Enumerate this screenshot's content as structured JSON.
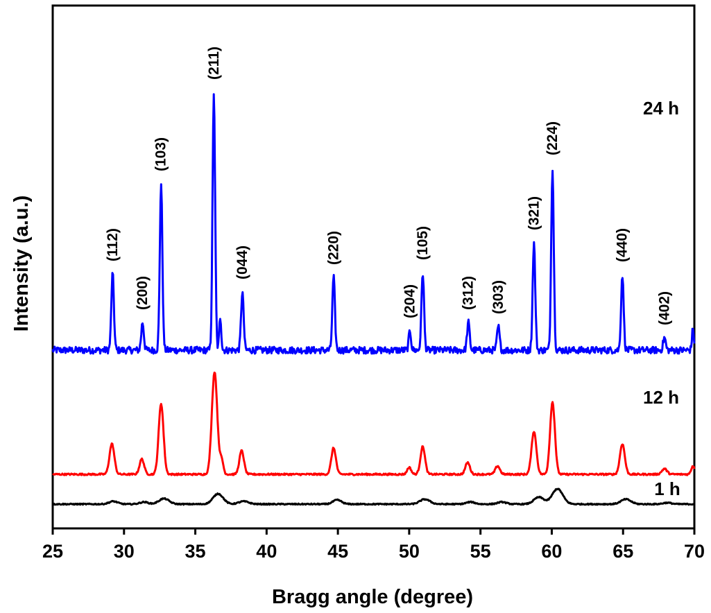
{
  "chart_data": {
    "type": "line",
    "title": "",
    "xlabel": "Bragg angle (degree)",
    "ylabel": "Intensity (a.u.)",
    "xlim": [
      25,
      70
    ],
    "xticks": [
      "25",
      "30",
      "35",
      "40",
      "45",
      "50",
      "55",
      "60",
      "65",
      "70"
    ],
    "yticks_shown": false,
    "grid": false,
    "legend": "none",
    "series": [
      {
        "name": "24 h",
        "color": "#0000ff",
        "noise": 5,
        "baseline": 0,
        "peaks": [
          {
            "x": 29.2,
            "height": 110,
            "width": 0.09
          },
          {
            "x": 31.3,
            "height": 40,
            "width": 0.09
          },
          {
            "x": 32.6,
            "height": 240,
            "width": 0.09
          },
          {
            "x": 36.3,
            "height": 372,
            "width": 0.09
          },
          {
            "x": 36.75,
            "height": 48,
            "width": 0.07
          },
          {
            "x": 38.3,
            "height": 84,
            "width": 0.09
          },
          {
            "x": 44.7,
            "height": 105,
            "width": 0.09
          },
          {
            "x": 50.05,
            "height": 28,
            "width": 0.08
          },
          {
            "x": 50.95,
            "height": 112,
            "width": 0.09
          },
          {
            "x": 54.15,
            "height": 40,
            "width": 0.09
          },
          {
            "x": 56.25,
            "height": 34,
            "width": 0.09
          },
          {
            "x": 58.75,
            "height": 155,
            "width": 0.09
          },
          {
            "x": 60.05,
            "height": 263,
            "width": 0.09
          },
          {
            "x": 64.95,
            "height": 109,
            "width": 0.09
          },
          {
            "x": 67.9,
            "height": 18,
            "width": 0.09
          },
          {
            "x": 69.9,
            "height": 30,
            "width": 0.07
          }
        ]
      },
      {
        "name": "12 h",
        "color": "#ff0000",
        "noise": 1.2,
        "baseline": 0,
        "peaks": [
          {
            "x": 29.15,
            "height": 44,
            "width": 0.17
          },
          {
            "x": 31.25,
            "height": 22,
            "width": 0.16
          },
          {
            "x": 32.6,
            "height": 102,
            "width": 0.17
          },
          {
            "x": 36.35,
            "height": 148,
            "width": 0.19
          },
          {
            "x": 36.85,
            "height": 20,
            "width": 0.12
          },
          {
            "x": 38.25,
            "height": 34,
            "width": 0.16
          },
          {
            "x": 44.7,
            "height": 38,
            "width": 0.16
          },
          {
            "x": 50.0,
            "height": 10,
            "width": 0.14
          },
          {
            "x": 50.95,
            "height": 40,
            "width": 0.16
          },
          {
            "x": 54.1,
            "height": 17,
            "width": 0.16
          },
          {
            "x": 56.2,
            "height": 12,
            "width": 0.16
          },
          {
            "x": 58.75,
            "height": 62,
            "width": 0.17
          },
          {
            "x": 60.05,
            "height": 104,
            "width": 0.17
          },
          {
            "x": 64.95,
            "height": 44,
            "width": 0.17
          },
          {
            "x": 67.9,
            "height": 8,
            "width": 0.18
          },
          {
            "x": 69.9,
            "height": 12,
            "width": 0.12
          }
        ]
      },
      {
        "name": "1 h",
        "color": "#000000",
        "noise": 0.8,
        "baseline": 0,
        "peaks": [
          {
            "x": 29.25,
            "height": 4,
            "width": 0.3
          },
          {
            "x": 31.4,
            "height": 3,
            "width": 0.3
          },
          {
            "x": 32.8,
            "height": 8,
            "width": 0.35
          },
          {
            "x": 36.6,
            "height": 15,
            "width": 0.35
          },
          {
            "x": 38.4,
            "height": 4,
            "width": 0.35
          },
          {
            "x": 44.95,
            "height": 6,
            "width": 0.3
          },
          {
            "x": 51.1,
            "height": 7,
            "width": 0.35
          },
          {
            "x": 54.3,
            "height": 3,
            "width": 0.3
          },
          {
            "x": 56.5,
            "height": 3,
            "width": 0.3
          },
          {
            "x": 59.1,
            "height": 10,
            "width": 0.35
          },
          {
            "x": 60.4,
            "height": 22,
            "width": 0.37
          },
          {
            "x": 65.2,
            "height": 7,
            "width": 0.35
          },
          {
            "x": 68.1,
            "height": 2,
            "width": 0.3
          }
        ]
      }
    ],
    "peak_labels": [
      {
        "text": "(112)",
        "x": 29.2
      },
      {
        "text": "(200)",
        "x": 31.3
      },
      {
        "text": "(103)",
        "x": 32.6
      },
      {
        "text": "(211)",
        "x": 36.3
      },
      {
        "text": "(044)",
        "x": 38.3
      },
      {
        "text": "(220)",
        "x": 44.7
      },
      {
        "text": "(204)",
        "x": 50.05
      },
      {
        "text": "(105)",
        "x": 50.95
      },
      {
        "text": "(312)",
        "x": 54.15
      },
      {
        "text": "(303)",
        "x": 56.25
      },
      {
        "text": "(321)",
        "x": 58.75
      },
      {
        "text": "(224)",
        "x": 60.05
      },
      {
        "text": "(440)",
        "x": 64.95
      },
      {
        "text": "(402)",
        "x": 67.9
      }
    ],
    "series_labels": [
      "24 h",
      "12 h",
      "1 h"
    ]
  }
}
